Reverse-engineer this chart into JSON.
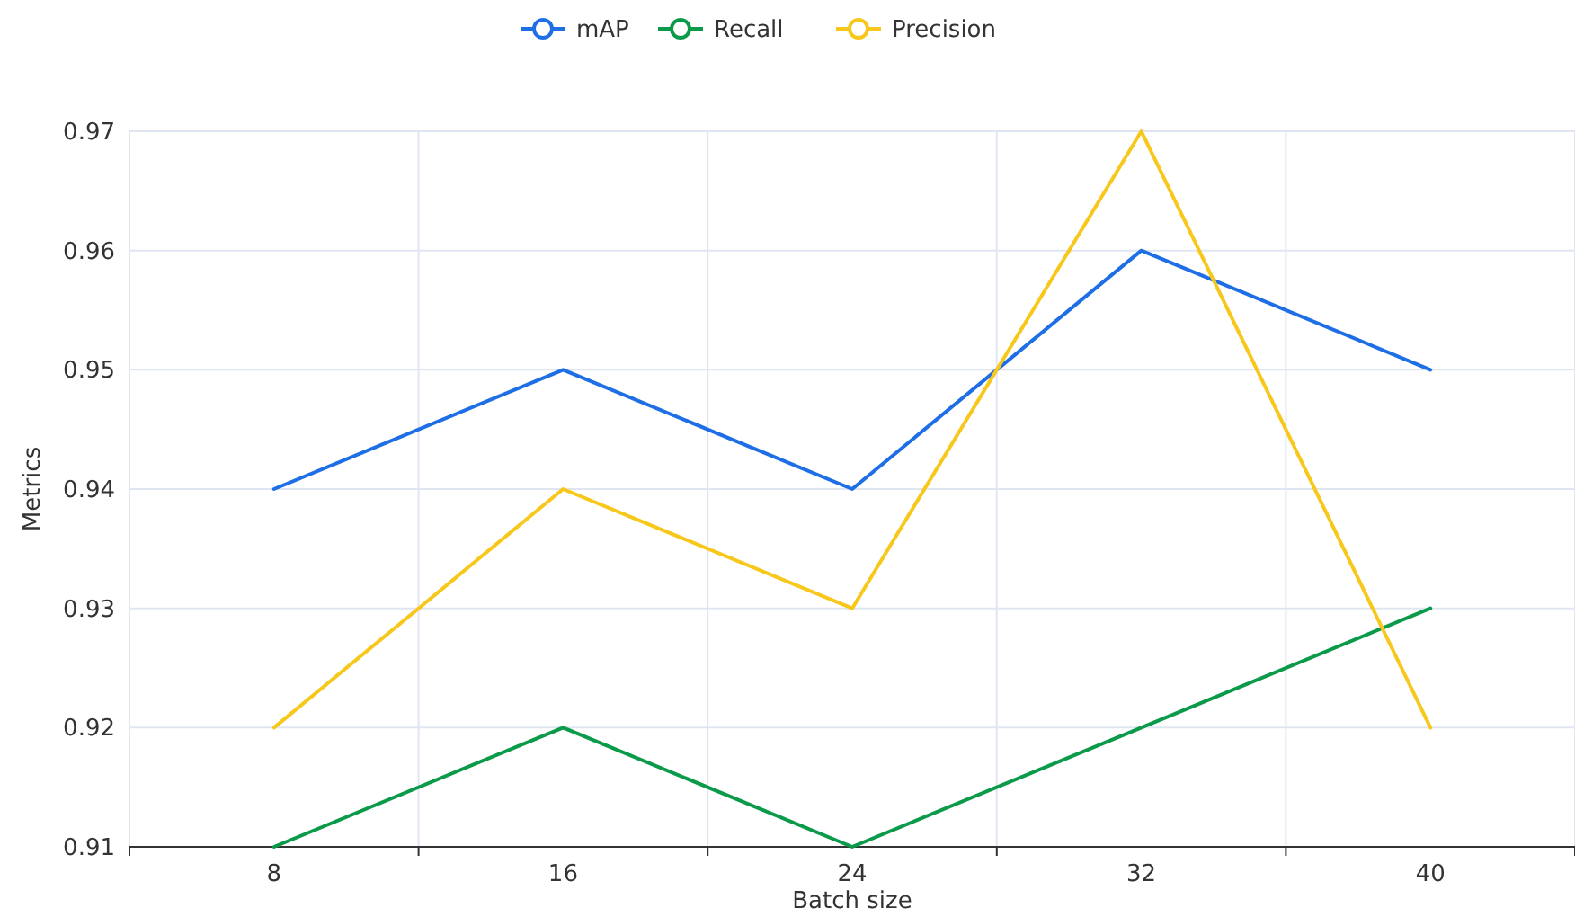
{
  "chart_data": {
    "type": "line",
    "xlabel": "Batch size",
    "ylabel": "Metrics",
    "categories": [
      "8",
      "16",
      "24",
      "32",
      "40"
    ],
    "series": [
      {
        "name": "mAP",
        "color": "#1e6fe6",
        "values": [
          0.94,
          0.95,
          0.94,
          0.96,
          0.95
        ]
      },
      {
        "name": "Recall",
        "color": "#0a9a4a",
        "values": [
          0.91,
          0.92,
          0.91,
          0.92,
          0.93
        ]
      },
      {
        "name": "Precision",
        "color": "#f7c81b",
        "values": [
          0.92,
          0.94,
          0.93,
          0.97,
          0.92
        ]
      }
    ],
    "ylim": [
      0.91,
      0.97
    ],
    "yticks": [
      0.91,
      0.92,
      0.93,
      0.94,
      0.95,
      0.96,
      0.97
    ],
    "grid": true,
    "legend": "top",
    "marker": "none",
    "line_style": "solid"
  }
}
